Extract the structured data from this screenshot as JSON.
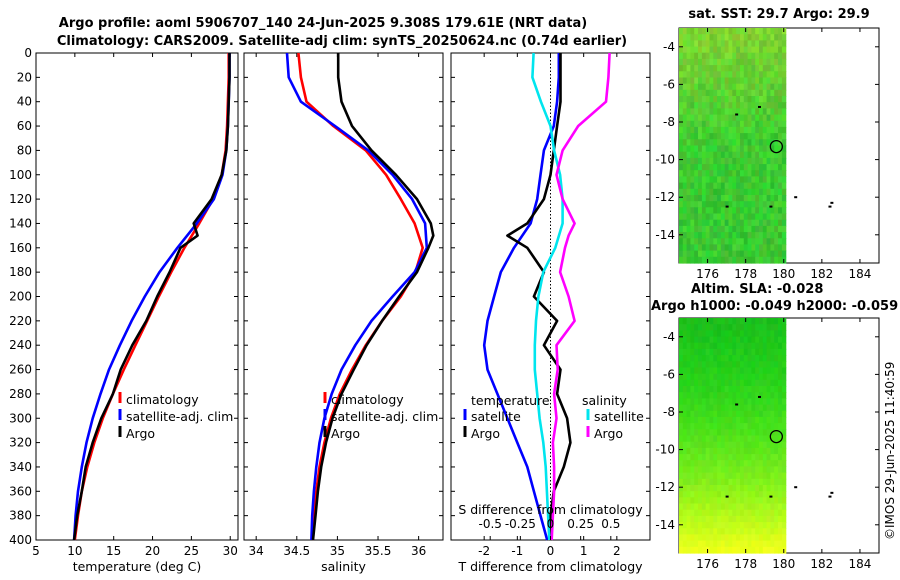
{
  "title": {
    "line1": "Argo profile: aoml 5906707_140 24-Jun-2025 9.308S 179.61E (NRT data)",
    "line2": "Climatology: CARS2009. Satellite-adj clim: synTS_20250624.nc (0.74d earlier)"
  },
  "timestamp": "©IMOS 29-Jun-2025 11:40:59",
  "colors": {
    "climatology": "#ff0000",
    "satellite": "#0000ff",
    "argo": "#000000",
    "temp_sat_diff": "#00e5ee",
    "sal_argo_diff": "#ff00ff"
  },
  "chart_data": [
    {
      "type": "line",
      "id": "temperature",
      "xlabel": "temperature (deg C)",
      "ylabel": "",
      "xlim": [
        5,
        31
      ],
      "ylim": [
        400,
        0
      ],
      "xticks": [
        5,
        10,
        15,
        20,
        25,
        30
      ],
      "yticks": [
        0,
        20,
        40,
        60,
        80,
        100,
        120,
        140,
        160,
        180,
        200,
        220,
        240,
        260,
        280,
        300,
        320,
        340,
        360,
        380,
        400
      ],
      "legend": [
        "climatology",
        "satellite-adj. clim",
        "Argo"
      ],
      "legend_loc": "lower-right",
      "series": [
        {
          "name": "climatology",
          "color": "#ff0000",
          "depth": [
            0,
            20,
            40,
            60,
            80,
            100,
            120,
            140,
            160,
            180,
            200,
            220,
            240,
            260,
            280,
            300,
            320,
            340,
            360,
            380,
            400
          ],
          "values": [
            29.8,
            29.8,
            29.7,
            29.6,
            29.4,
            28.9,
            27.8,
            26.0,
            24.1,
            22.4,
            20.8,
            19.3,
            17.8,
            16.3,
            14.9,
            13.6,
            12.5,
            11.6,
            10.9,
            10.4,
            10.0
          ]
        },
        {
          "name": "satellite-adj. clim",
          "color": "#0000ff",
          "depth": [
            0,
            20,
            40,
            60,
            80,
            100,
            120,
            140,
            160,
            180,
            200,
            220,
            240,
            260,
            280,
            300,
            320,
            340,
            360,
            380,
            400
          ],
          "values": [
            29.9,
            29.9,
            29.8,
            29.7,
            29.5,
            29.0,
            27.9,
            25.7,
            23.2,
            20.9,
            19.0,
            17.3,
            15.8,
            14.4,
            13.3,
            12.3,
            11.5,
            10.9,
            10.4,
            10.1,
            9.9
          ]
        },
        {
          "name": "Argo",
          "color": "#000000",
          "depth": [
            0,
            20,
            40,
            60,
            80,
            100,
            120,
            140,
            150,
            160,
            180,
            200,
            220,
            240,
            260,
            280,
            300,
            320,
            340,
            360,
            380,
            400
          ],
          "values": [
            29.9,
            29.9,
            29.8,
            29.7,
            29.5,
            28.9,
            27.6,
            25.3,
            25.8,
            23.6,
            22.2,
            20.6,
            19.2,
            17.4,
            15.9,
            14.9,
            13.4,
            12.3,
            11.4,
            10.9,
            10.3,
            9.9
          ]
        }
      ]
    },
    {
      "type": "line",
      "id": "salinity",
      "xlabel": "salinity",
      "xlim": [
        33.85,
        36.3
      ],
      "ylim": [
        400,
        0
      ],
      "xticks": [
        34,
        34.5,
        35,
        35.5,
        36
      ],
      "legend": [
        "climatology",
        "satellite-adj. clim",
        "Argo"
      ],
      "legend_loc": "lower-right",
      "series": [
        {
          "name": "climatology",
          "color": "#ff0000",
          "depth": [
            0,
            20,
            40,
            60,
            80,
            100,
            120,
            140,
            160,
            180,
            200,
            220,
            240,
            260,
            280,
            300,
            320,
            340,
            360,
            380,
            400
          ],
          "values": [
            34.52,
            34.55,
            34.62,
            34.95,
            35.35,
            35.6,
            35.78,
            35.95,
            36.05,
            35.96,
            35.78,
            35.55,
            35.35,
            35.18,
            35.03,
            34.92,
            34.84,
            34.78,
            34.74,
            34.71,
            34.69
          ]
        },
        {
          "name": "satellite-adj. clim",
          "color": "#0000ff",
          "depth": [
            0,
            20,
            40,
            60,
            80,
            100,
            120,
            140,
            160,
            180,
            200,
            220,
            240,
            260,
            280,
            300,
            320,
            340,
            360,
            380,
            400
          ],
          "values": [
            34.38,
            34.4,
            34.55,
            34.97,
            35.38,
            35.68,
            35.92,
            36.08,
            36.1,
            35.95,
            35.68,
            35.42,
            35.22,
            35.05,
            34.93,
            34.84,
            34.78,
            34.74,
            34.71,
            34.69,
            34.68
          ]
        },
        {
          "name": "Argo",
          "color": "#000000",
          "depth": [
            0,
            20,
            40,
            60,
            80,
            100,
            120,
            140,
            150,
            160,
            180,
            200,
            220,
            240,
            260,
            280,
            300,
            320,
            340,
            360,
            380,
            400
          ],
          "values": [
            35.01,
            35.01,
            35.05,
            35.18,
            35.42,
            35.72,
            35.98,
            36.15,
            36.18,
            36.12,
            35.98,
            35.76,
            35.55,
            35.36,
            35.2,
            35.05,
            34.94,
            34.86,
            34.8,
            34.76,
            34.73,
            34.7
          ]
        }
      ]
    },
    {
      "type": "line",
      "id": "differences",
      "xlabel": "T difference from climatology",
      "top_xlabel": "S difference from climatology",
      "xlim": [
        -3,
        3
      ],
      "ylim": [
        400,
        0
      ],
      "xticks": [
        -2,
        -1,
        0,
        1,
        2
      ],
      "top_xticks": [
        -0.5,
        -0.25,
        0,
        0.25,
        0.5
      ],
      "top_xticklabels": [
        "-0.5",
        "-0.25",
        "0",
        "0.25",
        "0.5"
      ],
      "legend_title_temperature": "temperature",
      "legend_title_salinity": "salinity",
      "legend_temperature": [
        "satellite",
        "Argo"
      ],
      "legend_salinity": [
        "satellite",
        "Argo"
      ],
      "series": [
        {
          "name": "T satellite",
          "color": "#0000ff",
          "depth": [
            0,
            20,
            40,
            60,
            80,
            100,
            120,
            140,
            160,
            180,
            200,
            220,
            240,
            260,
            280,
            300,
            320,
            340,
            360,
            380,
            400
          ],
          "values": [
            0.25,
            0.25,
            0.2,
            0.1,
            -0.2,
            -0.3,
            -0.4,
            -0.6,
            -1.1,
            -1.5,
            -1.7,
            -1.9,
            -2.0,
            -1.9,
            -1.6,
            -1.3,
            -1.0,
            -0.7,
            -0.5,
            -0.3,
            -0.1
          ]
        },
        {
          "name": "T Argo",
          "color": "#000000",
          "depth": [
            0,
            20,
            40,
            60,
            80,
            100,
            120,
            140,
            150,
            160,
            180,
            200,
            220,
            240,
            260,
            280,
            300,
            320,
            340,
            360,
            380,
            400
          ],
          "values": [
            0.3,
            0.3,
            0.3,
            0.2,
            0.1,
            0.0,
            -0.2,
            -0.7,
            -1.3,
            -0.7,
            -0.2,
            -0.5,
            0.2,
            -0.2,
            0.3,
            0.2,
            0.5,
            0.6,
            0.4,
            0.1,
            0.0,
            0.0
          ]
        },
        {
          "name": "S satellite",
          "color": "#00e5ee",
          "depth": [
            0,
            20,
            40,
            60,
            80,
            100,
            120,
            140,
            160,
            180,
            200,
            220,
            240,
            260,
            280,
            300,
            320,
            340,
            360,
            380,
            400
          ],
          "values": [
            -0.14,
            -0.15,
            -0.08,
            0.0,
            0.03,
            0.08,
            0.1,
            0.1,
            0.04,
            -0.06,
            -0.1,
            -0.12,
            -0.13,
            -0.13,
            -0.11,
            -0.09,
            -0.06,
            -0.04,
            -0.03,
            -0.02,
            -0.01
          ]
        },
        {
          "name": "S Argo",
          "color": "#ff00ff",
          "depth": [
            0,
            20,
            40,
            60,
            80,
            100,
            120,
            140,
            150,
            160,
            180,
            200,
            220,
            240,
            260,
            280,
            300,
            320,
            340,
            360,
            380,
            400
          ],
          "values": [
            0.49,
            0.48,
            0.46,
            0.23,
            0.1,
            0.05,
            0.1,
            0.2,
            0.15,
            0.12,
            0.08,
            0.15,
            0.2,
            0.05,
            0.06,
            0.03,
            0.05,
            0.02,
            0.03,
            0.03,
            0.02,
            0.01
          ]
        }
      ]
    },
    {
      "type": "heatmap",
      "id": "sst_map",
      "title": "sat. SST: 29.7 Argo: 29.9",
      "xlim": [
        174.5,
        185
      ],
      "ylim": [
        -15.5,
        -3
      ],
      "xticks": [
        176,
        178,
        180,
        182,
        184
      ],
      "yticks": [
        -4,
        -6,
        -8,
        -10,
        -12,
        -14
      ],
      "data_extent_lon": [
        174.5,
        180.1
      ],
      "argo_marker": {
        "lon": 179.61,
        "lat": -9.308
      }
    },
    {
      "type": "heatmap",
      "id": "sla_map",
      "title_line1": "Altim. SLA: -0.028",
      "title_line2": "Argo h1000: -0.049 h2000: -0.059",
      "xlim": [
        174.5,
        185
      ],
      "ylim": [
        -15.5,
        -3
      ],
      "xticks": [
        176,
        178,
        180,
        182,
        184
      ],
      "yticks": [
        -4,
        -6,
        -8,
        -10,
        -12,
        -14
      ],
      "data_extent_lon": [
        174.5,
        180.1
      ],
      "argo_marker": {
        "lon": 179.61,
        "lat": -9.308
      }
    }
  ]
}
